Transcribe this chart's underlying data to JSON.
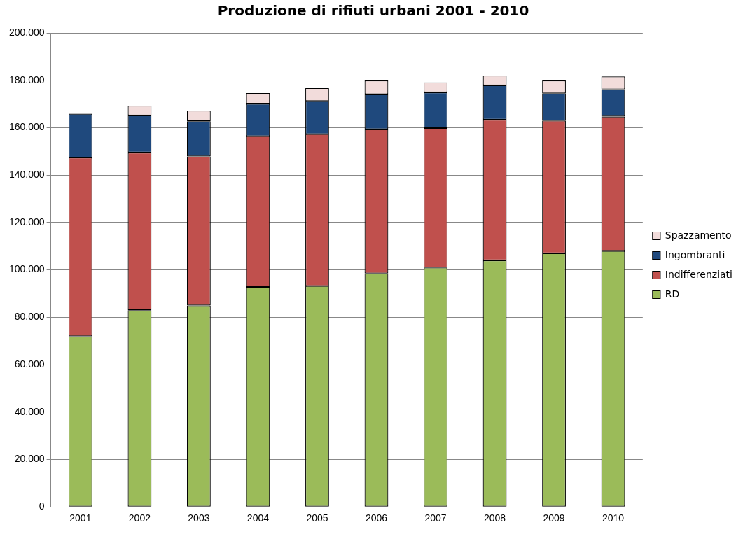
{
  "chart_data": {
    "type": "bar",
    "title": "Produzione di rifiuti urbani 2001 - 2010",
    "stacked": true,
    "categories": [
      "2001",
      "2002",
      "2003",
      "2004",
      "2005",
      "2006",
      "2007",
      "2008",
      "2009",
      "2010"
    ],
    "series": [
      {
        "name": "RD",
        "color": "#9bbb59",
        "values": [
          72000,
          83000,
          85000,
          92800,
          93200,
          98500,
          101000,
          104000,
          107000,
          108000
        ]
      },
      {
        "name": "Indifferenziati",
        "color": "#c0504d",
        "values": [
          75400,
          66500,
          62900,
          63600,
          64100,
          60800,
          58800,
          59400,
          56000,
          56700
        ]
      },
      {
        "name": "Ingombranti",
        "color": "#1f497d",
        "values": [
          18500,
          15700,
          14800,
          13700,
          13900,
          14800,
          15100,
          14500,
          11500,
          11500
        ]
      },
      {
        "name": "Spazzamento",
        "color": "#f2dcdb",
        "values": [
          null,
          4100,
          4500,
          4500,
          5500,
          5800,
          4200,
          4100,
          5400,
          5400
        ]
      }
    ],
    "ylim": [
      0,
      200000
    ],
    "yticks": [
      {
        "value": 0,
        "label": "0"
      },
      {
        "value": 20000,
        "label": "20.000"
      },
      {
        "value": 40000,
        "label": "40.000"
      },
      {
        "value": 60000,
        "label": "60.000"
      },
      {
        "value": 80000,
        "label": "80.000"
      },
      {
        "value": 100000,
        "label": "100.000"
      },
      {
        "value": 120000,
        "label": "120.000"
      },
      {
        "value": 140000,
        "label": "140.000"
      },
      {
        "value": 160000,
        "label": "160.000"
      },
      {
        "value": 180000,
        "label": "180.000"
      },
      {
        "value": 200000,
        "label": "200.000"
      }
    ],
    "grid": "y",
    "legend": "right"
  }
}
